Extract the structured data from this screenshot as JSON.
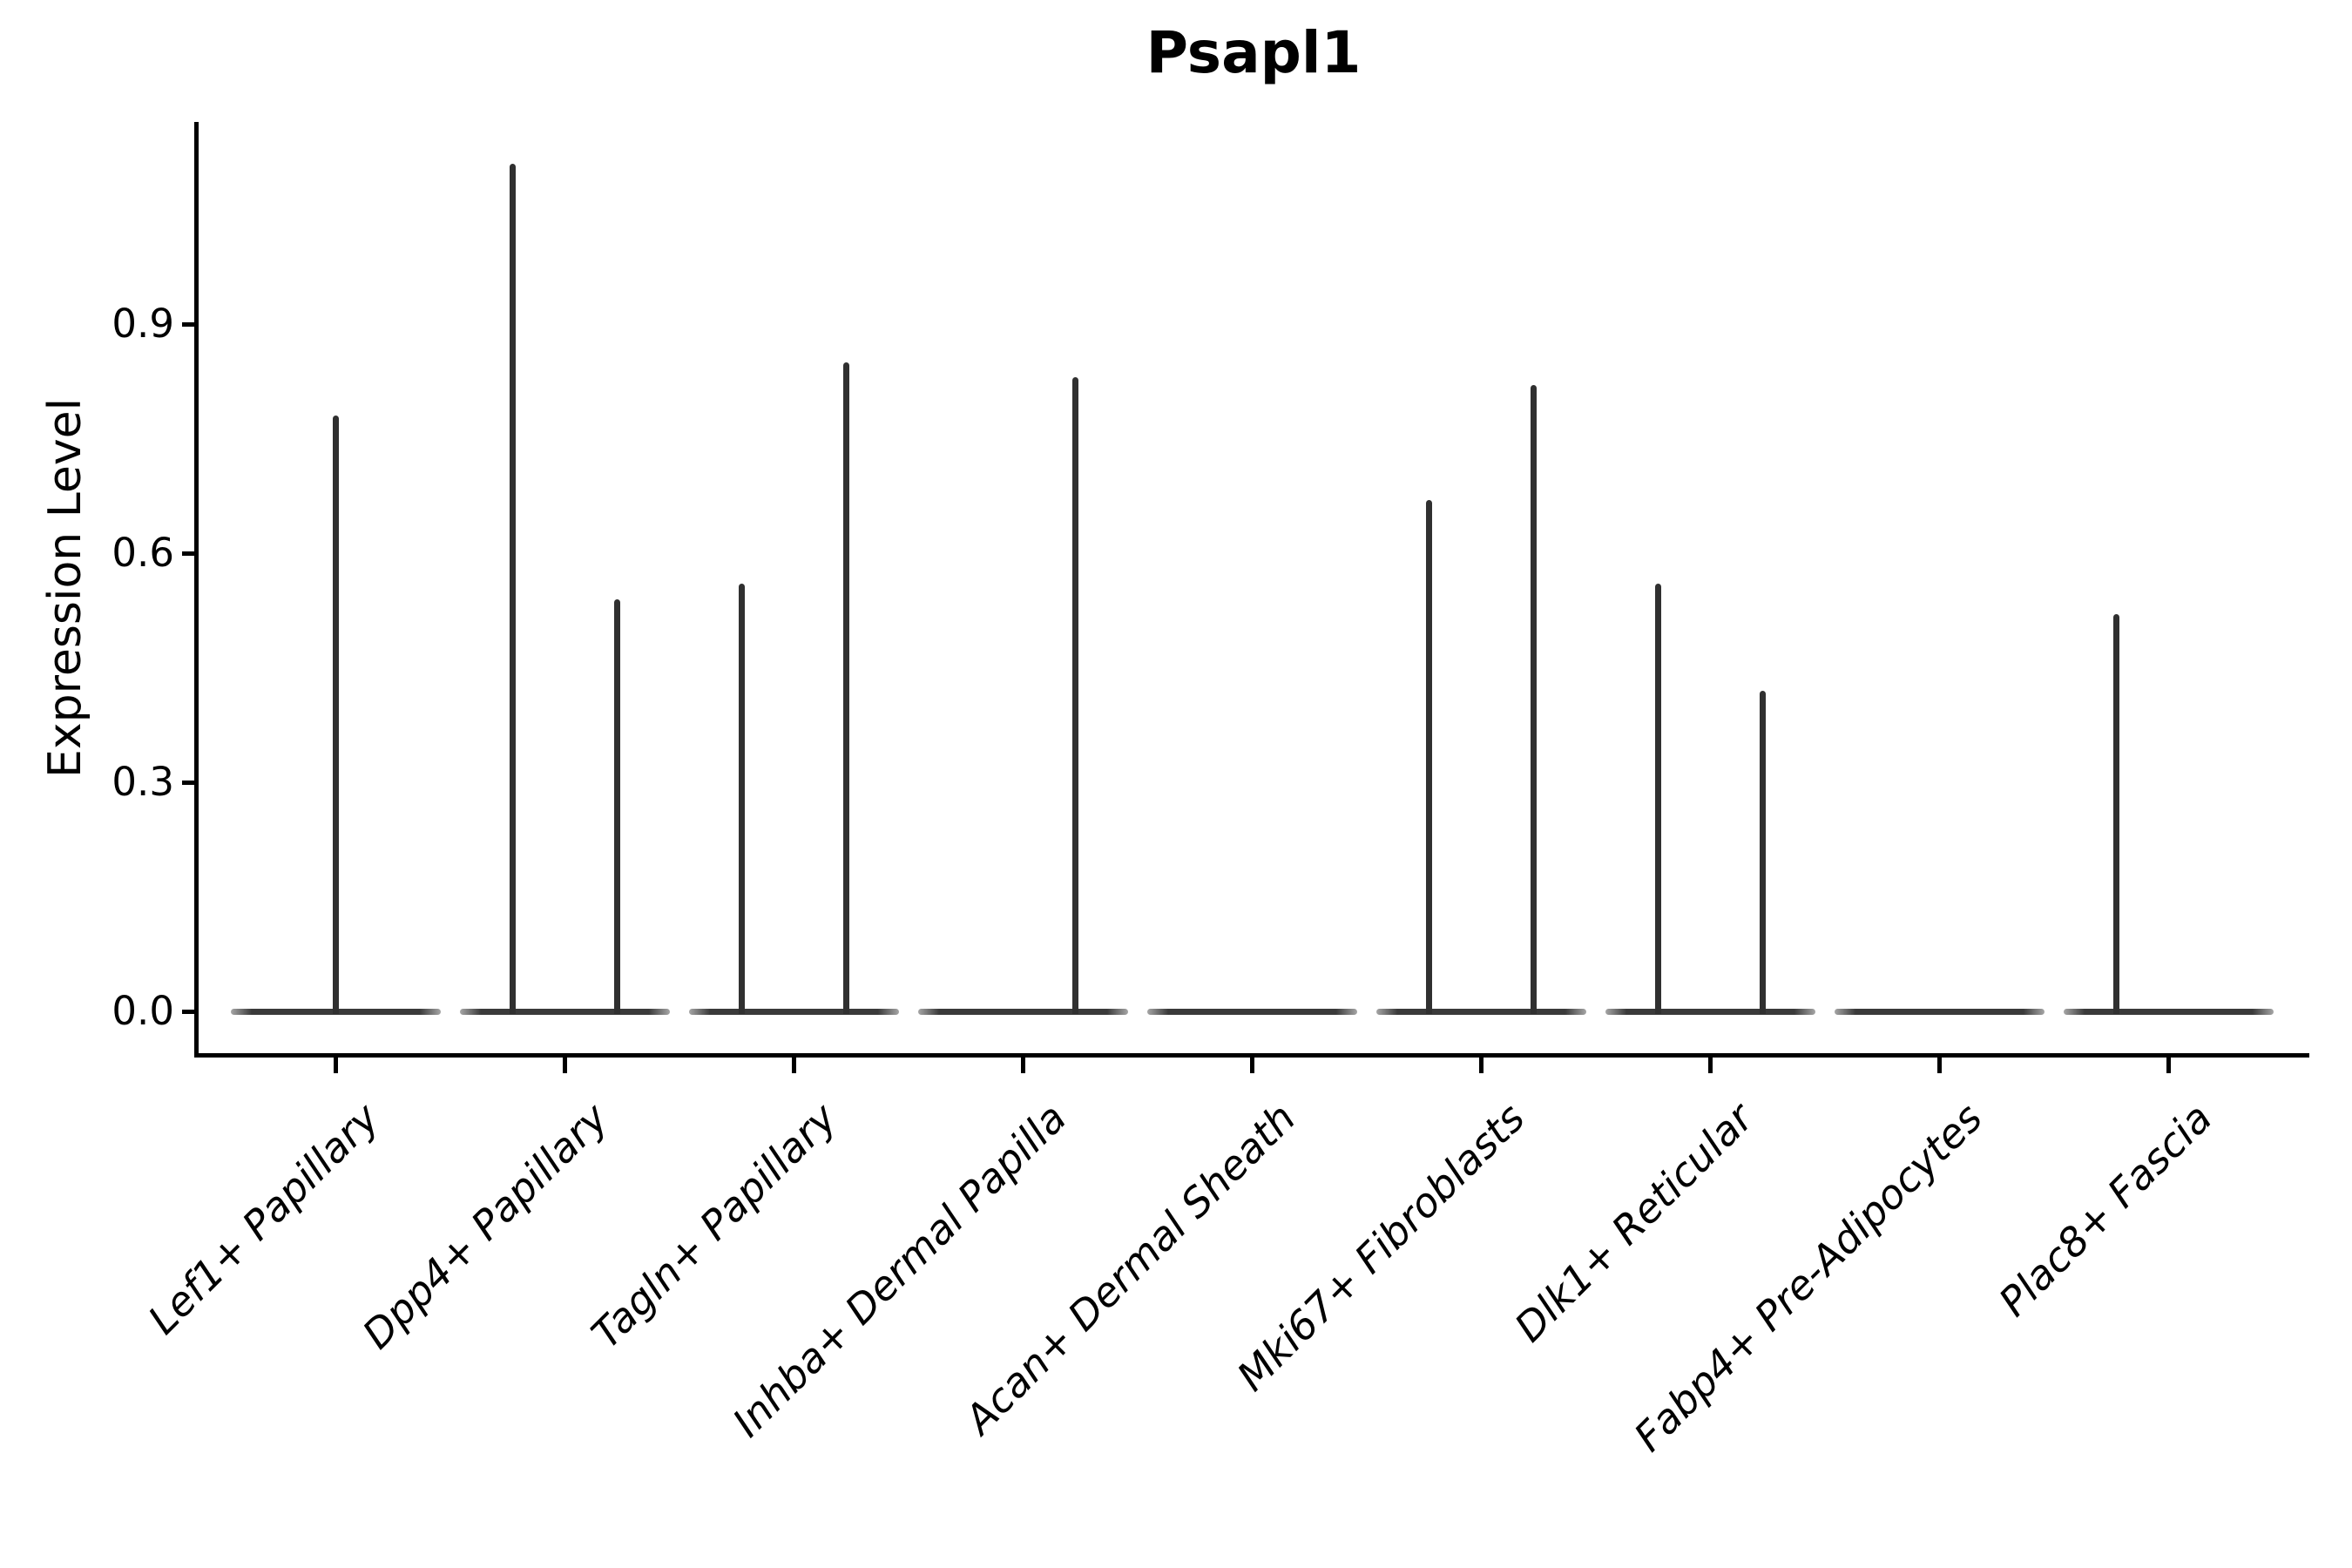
{
  "chart_data": {
    "type": "violin",
    "title": "Psapl1",
    "ylabel": "Expression Level",
    "xlabel": "",
    "yticks": [
      0.0,
      0.3,
      0.6,
      0.9
    ],
    "ylim": [
      -0.055,
      1.165
    ],
    "grid": false,
    "legend": "none",
    "style": "flat baseline violins (most values 0) with thin density spikes; spikes at dodged group positions (left/center/right) within each category",
    "categories": [
      {
        "label": "Lef1+ Papillary",
        "spikes": [
          {
            "pos": "center",
            "max_expression": 0.78
          }
        ]
      },
      {
        "label": "Dpp4+ Papillary",
        "spikes": [
          {
            "pos": "left",
            "max_expression": 1.11
          },
          {
            "pos": "right",
            "max_expression": 0.54
          }
        ]
      },
      {
        "label": "Tagln+ Papillary",
        "spikes": [
          {
            "pos": "left",
            "max_expression": 0.56
          },
          {
            "pos": "right",
            "max_expression": 0.85
          }
        ]
      },
      {
        "label": "Inhba+ Dermal Papilla",
        "spikes": [
          {
            "pos": "right",
            "max_expression": 0.83
          }
        ]
      },
      {
        "label": "Acan+ Dermal Sheath",
        "spikes": []
      },
      {
        "label": "Mki67+ Fibroblasts",
        "spikes": [
          {
            "pos": "left",
            "max_expression": 0.67
          },
          {
            "pos": "right",
            "max_expression": 0.82
          }
        ]
      },
      {
        "label": "Dlk1+ Reticular",
        "spikes": [
          {
            "pos": "left",
            "max_expression": 0.56
          },
          {
            "pos": "right",
            "max_expression": 0.42
          }
        ]
      },
      {
        "label": "Fabp4+ Pre-Adipocytes",
        "spikes": []
      },
      {
        "label": "Plac8+ Fascia",
        "spikes": [
          {
            "pos": "left",
            "max_expression": 0.52
          }
        ]
      }
    ],
    "colors": {
      "violin_line": "#303030",
      "baseline": "#3a3a3a",
      "axis": "#000000",
      "background": "#ffffff"
    }
  }
}
